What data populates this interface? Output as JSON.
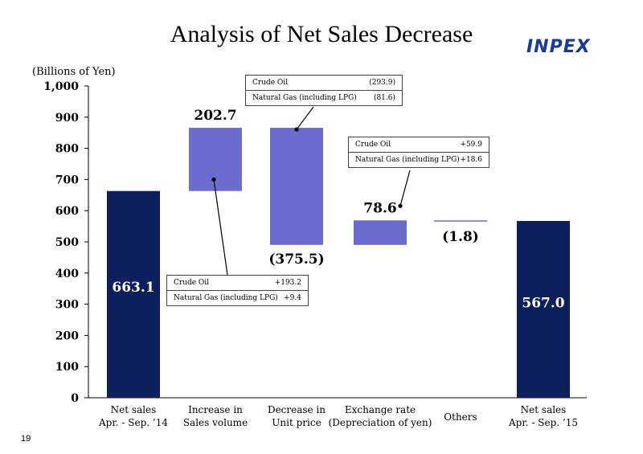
{
  "title": "Analysis of Net Sales Decrease",
  "logo": "INPEX",
  "page_number": "19",
  "colors": {
    "dark": "#0d1f5c",
    "light": "#6b6bd0"
  },
  "chart_data": {
    "type": "bar",
    "subtype": "waterfall",
    "ylabel": "(Billions of Yen)",
    "ylim": [
      0,
      1000
    ],
    "yticks": [
      "0",
      "100",
      "200",
      "300",
      "400",
      "500",
      "600",
      "700",
      "800",
      "900",
      "1,000"
    ],
    "categories": [
      [
        "Net sales",
        "Apr. - Sep. ’14"
      ],
      [
        "Increase in",
        "Sales volume"
      ],
      [
        "Decrease in",
        "Unit price"
      ],
      [
        "Exchange rate",
        "(Depreciation of yen)"
      ],
      [
        "Others"
      ],
      [
        "Net sales",
        "Apr. - Sep. ’15"
      ]
    ],
    "bars": [
      {
        "start": 0,
        "end": 663.1,
        "kind": "total",
        "label": "663.1"
      },
      {
        "start": 663.1,
        "end": 865.8,
        "kind": "delta",
        "label": "202.7"
      },
      {
        "start": 865.8,
        "end": 490.3,
        "kind": "delta",
        "label": "(375.5)"
      },
      {
        "start": 490.3,
        "end": 568.9,
        "kind": "delta",
        "label": "78.6"
      },
      {
        "start": 568.9,
        "end": 567.1,
        "kind": "delta",
        "label": "(1.8)"
      },
      {
        "start": 0,
        "end": 567.0,
        "kind": "total",
        "label": "567.0"
      }
    ],
    "callouts": [
      {
        "for": "Decrease in Unit price",
        "rows": [
          [
            "Crude Oil",
            "(293.9)"
          ],
          [
            "Natural Gas (including LPG)",
            "(81.6)"
          ]
        ]
      },
      {
        "for": "Exchange rate",
        "rows": [
          [
            "Crude Oil",
            "+59.9"
          ],
          [
            "Natural Gas (including LPG)",
            "+18.6"
          ]
        ]
      },
      {
        "for": "Increase in Sales volume",
        "rows": [
          [
            "Crude Oil",
            "+193.2"
          ],
          [
            "Natural Gas (including LPG)",
            "+9.4"
          ]
        ]
      }
    ]
  }
}
